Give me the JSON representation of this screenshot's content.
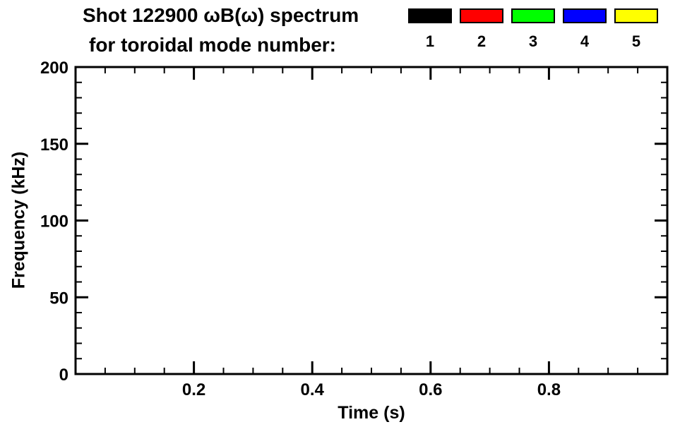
{
  "chart_data": {
    "type": "scatter",
    "title_line1": "Shot 122900 ωB(ω) spectrum",
    "title_line2": "for toroidal mode number:",
    "xlabel": "Time (s)",
    "ylabel": "Frequency (kHz)",
    "xlim": [
      0,
      1.0
    ],
    "ylim": [
      0,
      200
    ],
    "xticks": [
      0.2,
      0.4,
      0.6,
      0.8
    ],
    "xtick_labels": [
      "0.2",
      "0.4",
      "0.6",
      "0.8"
    ],
    "x_minor_step": 0.05,
    "yticks": [
      0,
      50,
      100,
      150,
      200
    ],
    "ytick_labels": [
      "0",
      "50",
      "100",
      "150",
      "200"
    ],
    "y_minor_step": 10,
    "grid": false,
    "axis_color": "#000000",
    "background": "#ffffff",
    "legend": {
      "position": "top-right",
      "entries": [
        {
          "label": "1",
          "color": "#000000"
        },
        {
          "label": "2",
          "color": "#ff0000"
        },
        {
          "label": "3",
          "color": "#00ff00"
        },
        {
          "label": "4",
          "color": "#0000ff"
        },
        {
          "label": "5",
          "color": "#ffff00"
        }
      ]
    },
    "series": []
  }
}
